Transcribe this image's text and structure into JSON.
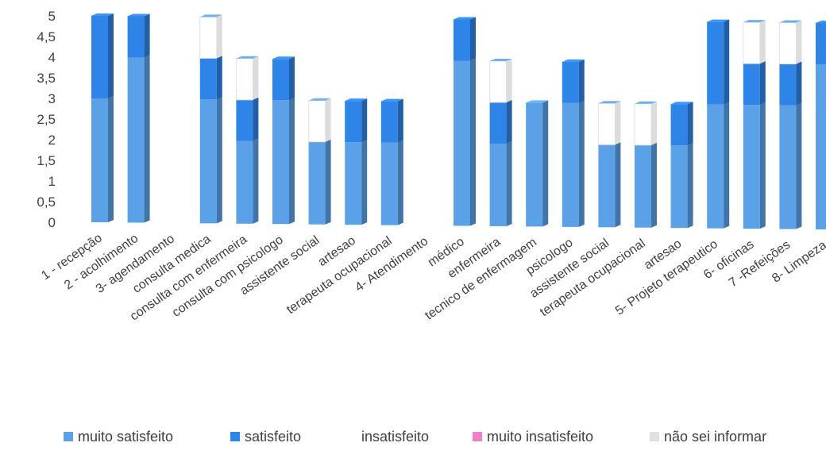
{
  "chart_data": {
    "type": "bar",
    "stacked": true,
    "title": "",
    "xlabel": "",
    "ylabel": "",
    "ylim": [
      0,
      5
    ],
    "yticks": [
      "0",
      "0,5",
      "1",
      "1,5",
      "2",
      "2,5",
      "3",
      "3,5",
      "4",
      "4,5",
      "5"
    ],
    "grid": false,
    "legend_position": "bottom",
    "categories": [
      "1 - recepção",
      "2 - acolhimento",
      "3- agendamento",
      "consulta medica",
      "consulta com enfermeira",
      "consulta com psicologo",
      "assistente social",
      "artesao",
      "terapeuta ocupacional",
      "4- Atendimento",
      "médico",
      "enfermeira",
      "tecnico de enfermagem",
      "psicologo",
      "assistente social",
      "terapeuta ocupacional",
      "artesao",
      "5- Projeto terapeutico",
      "6- oficinas",
      "7 -Refeições",
      "8- Limpeza"
    ],
    "series": [
      {
        "name": "muito satisfeito",
        "color": "#5aa1e8",
        "values": [
          3,
          4,
          0,
          3,
          2,
          3,
          2,
          2,
          2,
          0,
          4,
          2,
          3,
          3,
          2,
          2,
          2,
          3,
          3,
          3,
          4
        ]
      },
      {
        "name": "satisfeito",
        "color": "#2f84e8",
        "values": [
          2,
          1,
          0,
          1,
          1,
          1,
          0,
          1,
          1,
          0,
          1,
          1,
          0,
          1,
          0,
          0,
          1,
          2,
          1,
          1,
          1
        ]
      },
      {
        "name": "insatisfeito",
        "color": "#1f5fb0",
        "values": [
          0,
          0,
          0,
          0,
          0,
          0,
          0,
          0,
          0,
          0,
          0,
          0,
          0,
          0,
          0,
          0,
          0,
          0,
          0,
          0,
          0
        ]
      },
      {
        "name": "muito insatisfeito",
        "color": "#f080c8",
        "values": [
          0,
          0,
          0,
          0,
          0,
          0,
          0,
          0,
          0,
          0,
          0,
          0,
          0,
          0,
          0,
          0,
          0,
          0,
          0,
          0,
          0
        ]
      },
      {
        "name": "não sei informar",
        "color": "#c4c4c4",
        "values": [
          0,
          0,
          0,
          1,
          1,
          0,
          1,
          0,
          0,
          0,
          0,
          1,
          0,
          0,
          1,
          1,
          0,
          0,
          1,
          1,
          0
        ]
      }
    ]
  }
}
